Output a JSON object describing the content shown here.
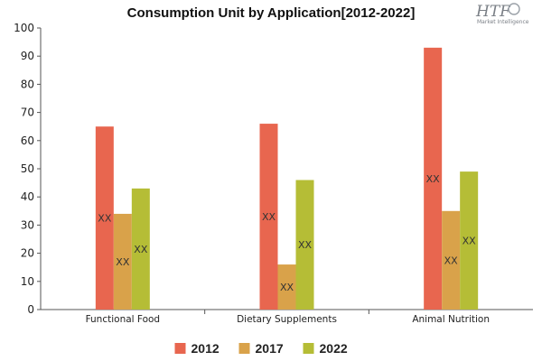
{
  "chart_data": {
    "type": "bar",
    "title": "Consumption Unit by  Application[2012-2022]",
    "categories": [
      "Functional Food",
      "Dietary Supplements",
      "Animal Nutrition"
    ],
    "series": [
      {
        "name": "2012",
        "color": "#e8664f",
        "values": [
          65,
          66,
          93
        ],
        "labels": [
          "XX",
          "XX",
          "XX"
        ]
      },
      {
        "name": "2017",
        "color": "#d9a24a",
        "values": [
          34,
          16,
          35
        ],
        "labels": [
          "XX",
          "XX",
          "XX"
        ]
      },
      {
        "name": "2022",
        "color": "#b5bd36",
        "values": [
          43,
          46,
          49
        ],
        "labels": [
          "XX",
          "XX",
          "XX"
        ]
      }
    ],
    "ylim": [
      0,
      100
    ],
    "yticks": [
      0,
      10,
      20,
      30,
      40,
      50,
      60,
      70,
      80,
      90,
      100
    ],
    "xlabel": "",
    "ylabel": "",
    "grid": false,
    "legend": "bottom"
  },
  "logo": {
    "text": "HTF",
    "subtext": "Market Intelligence"
  }
}
